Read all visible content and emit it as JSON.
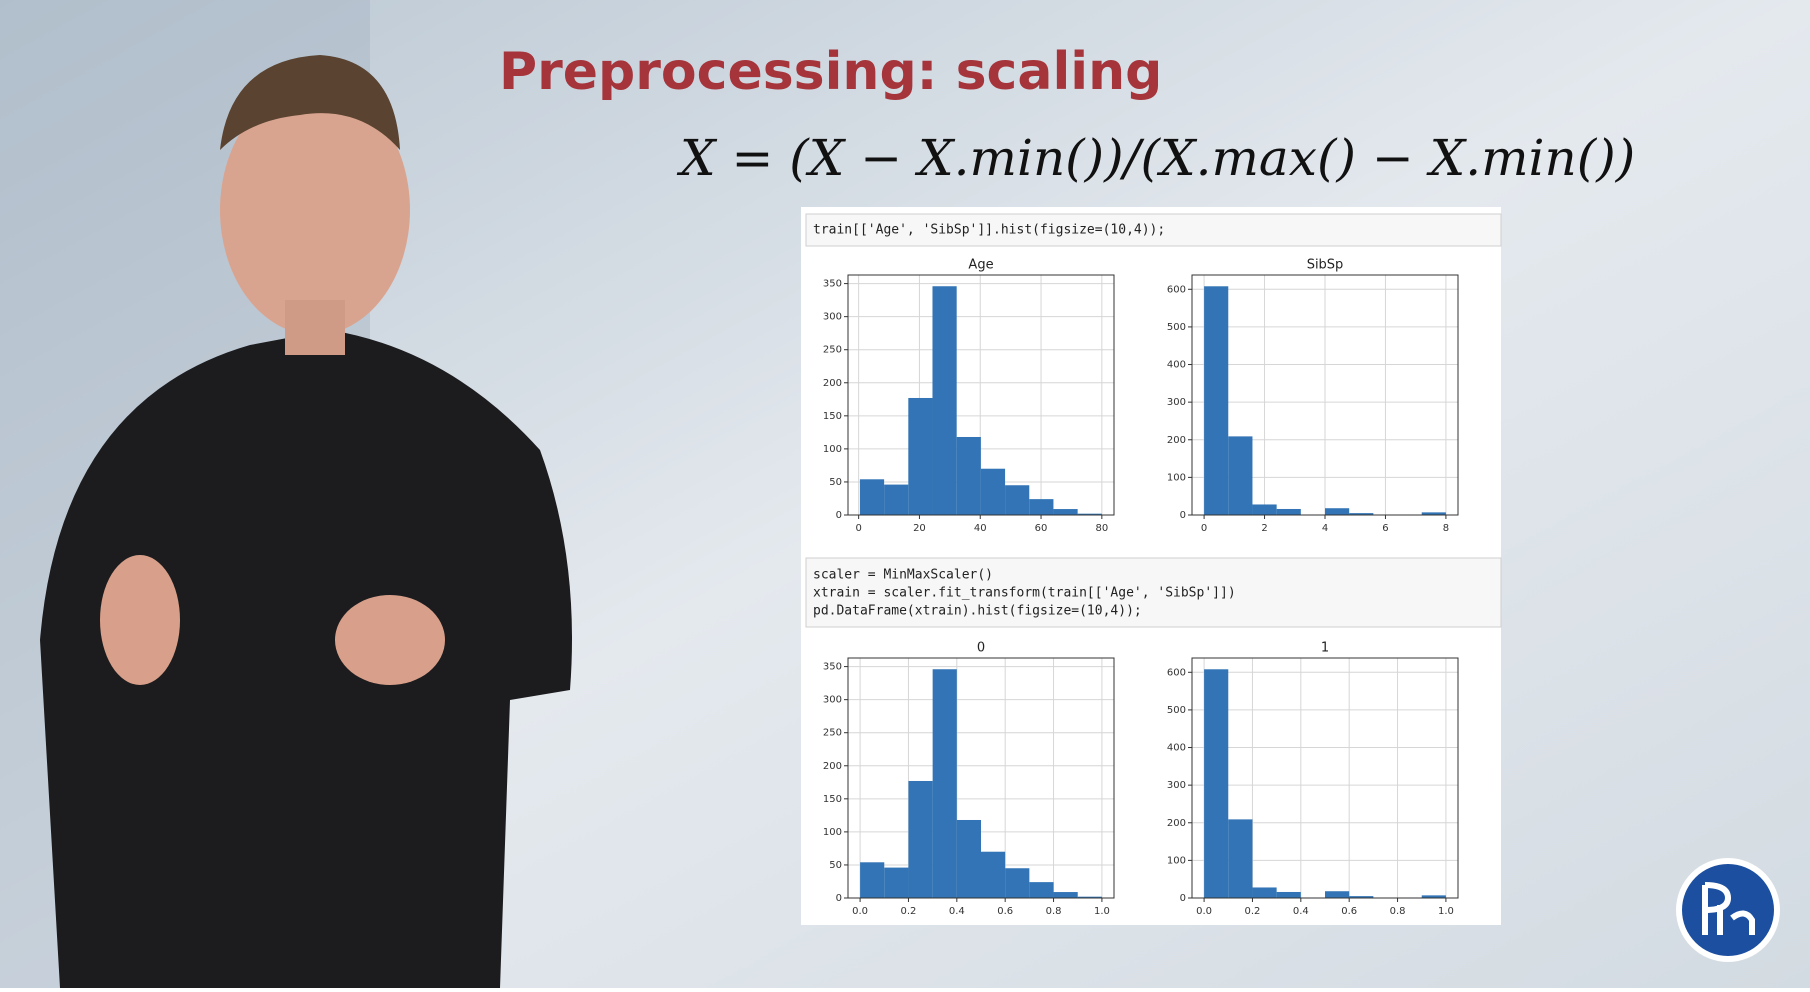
{
  "slide": {
    "title": "Preprocessing: scaling",
    "formula": "X = (X − X.min())/(X.max() − X.min())"
  },
  "code_cells": [
    {
      "lines": [
        "train[['Age', 'SibSp']].hist(figsize=(10,4));"
      ]
    },
    {
      "lines": [
        "scaler = MinMaxScaler()",
        "xtrain = scaler.fit_transform(train[['Age', 'SibSp']])",
        "pd.DataFrame(xtrain).hist(figsize=(10,4));"
      ]
    }
  ],
  "chart_data": [
    {
      "type": "histogram",
      "title": "Age",
      "color": "#3274b5",
      "grid": true,
      "bins": [
        0.42,
        8.38,
        16.34,
        24.29,
        32.25,
        40.21,
        48.17,
        56.13,
        64.08,
        72.04,
        80
      ],
      "values": [
        54,
        46,
        177,
        346,
        118,
        70,
        45,
        24,
        9,
        2
      ],
      "xlim": [
        -3.5,
        84
      ],
      "xticks": [
        0,
        20,
        40,
        60,
        80
      ],
      "ylim": [
        0,
        363
      ],
      "yticks": [
        0,
        50,
        100,
        150,
        200,
        250,
        300,
        350
      ]
    },
    {
      "type": "histogram",
      "title": "SibSp",
      "color": "#3274b5",
      "grid": true,
      "bins": [
        0,
        0.8,
        1.6,
        2.4,
        3.2,
        4,
        4.8,
        5.6,
        6.4,
        7.2,
        8
      ],
      "values": [
        608,
        209,
        28,
        16,
        0,
        18,
        5,
        0,
        0,
        7
      ],
      "xlim": [
        -0.4,
        8.4
      ],
      "xticks": [
        0,
        2,
        4,
        6,
        8
      ],
      "ylim": [
        0,
        638
      ],
      "yticks": [
        0,
        100,
        200,
        300,
        400,
        500,
        600
      ]
    },
    {
      "type": "histogram",
      "title": "0",
      "color": "#3274b5",
      "grid": true,
      "bins": [
        0,
        0.1,
        0.2,
        0.3,
        0.4,
        0.5,
        0.6,
        0.7,
        0.8,
        0.9,
        1
      ],
      "values": [
        54,
        46,
        177,
        346,
        118,
        70,
        45,
        24,
        9,
        2
      ],
      "xlim": [
        -0.05,
        1.05
      ],
      "xticks": [
        {
          "value": 0,
          "label": "0.0"
        },
        0.2,
        0.4,
        0.6,
        0.8,
        {
          "value": 1,
          "label": "1.0"
        }
      ],
      "ylim": [
        0,
        363
      ],
      "yticks": [
        0,
        50,
        100,
        150,
        200,
        250,
        300,
        350
      ]
    },
    {
      "type": "histogram",
      "title": "1",
      "color": "#3274b5",
      "grid": true,
      "bins": [
        0,
        0.1,
        0.2,
        0.3,
        0.4,
        0.5,
        0.6,
        0.7,
        0.8,
        0.9,
        1
      ],
      "values": [
        608,
        209,
        28,
        16,
        0,
        18,
        5,
        0,
        0,
        7
      ],
      "xlim": [
        -0.05,
        1.05
      ],
      "xticks": [
        {
          "value": 0,
          "label": "0.0"
        },
        0.2,
        0.4,
        0.6,
        0.8,
        {
          "value": 1,
          "label": "1.0"
        }
      ],
      "ylim": [
        0,
        638
      ],
      "yticks": [
        0,
        100,
        200,
        300,
        400,
        500,
        600
      ]
    }
  ]
}
